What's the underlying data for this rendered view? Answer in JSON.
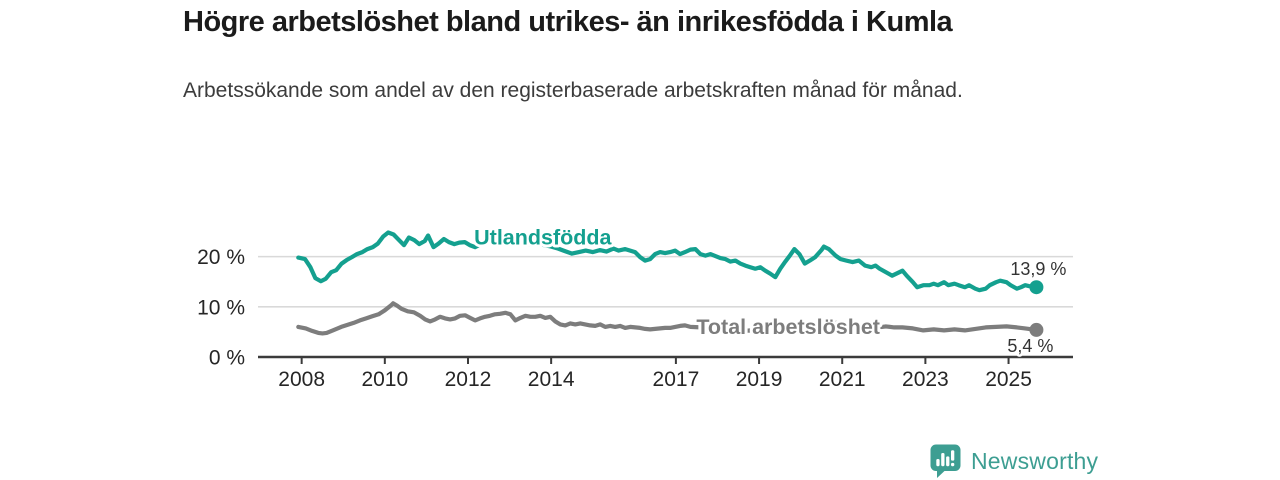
{
  "header": {},
  "chart_data": {
    "type": "line",
    "title": "Högre arbetslöshet bland utrikes- än inrikesfödda i Kumla",
    "subtitle": "Arbetssökande som andel av den registerbaserade arbetskraften månad för månad.",
    "unit": "%",
    "grid": "horizontal",
    "legend": "inline-labels",
    "xlim": [
      2006.95,
      2026.55
    ],
    "ylim": [
      0,
      26
    ],
    "x_ticks": [
      2008,
      2010,
      2012,
      2014,
      2017,
      2019,
      2021,
      2023,
      2025
    ],
    "y_ticks": [
      {
        "value": 0,
        "label": "0 %"
      },
      {
        "value": 10,
        "label": "10 %"
      },
      {
        "value": 20,
        "label": "20 %"
      }
    ],
    "series": [
      {
        "name": "Total arbetslöshet",
        "color": "#7d7d7d",
        "end_label": "5,4 %",
        "end_label_pos": "below",
        "end_dot": true,
        "label_anchor": {
          "year": 2019.7,
          "value": 6.1
        },
        "points": [
          [
            2007.92,
            6.0
          ],
          [
            2008.1,
            5.7
          ],
          [
            2008.25,
            5.2
          ],
          [
            2008.4,
            4.8
          ],
          [
            2008.5,
            4.7
          ],
          [
            2008.6,
            4.8
          ],
          [
            2008.75,
            5.3
          ],
          [
            2008.95,
            6.0
          ],
          [
            2009.1,
            6.4
          ],
          [
            2009.25,
            6.8
          ],
          [
            2009.4,
            7.3
          ],
          [
            2009.55,
            7.7
          ],
          [
            2009.7,
            8.1
          ],
          [
            2009.85,
            8.5
          ],
          [
            2010.0,
            9.3
          ],
          [
            2010.15,
            10.3
          ],
          [
            2010.2,
            10.7
          ],
          [
            2010.3,
            10.2
          ],
          [
            2010.4,
            9.6
          ],
          [
            2010.55,
            9.1
          ],
          [
            2010.7,
            8.9
          ],
          [
            2010.85,
            8.2
          ],
          [
            2010.97,
            7.5
          ],
          [
            2011.09,
            7.1
          ],
          [
            2011.21,
            7.5
          ],
          [
            2011.33,
            8.0
          ],
          [
            2011.45,
            7.7
          ],
          [
            2011.57,
            7.5
          ],
          [
            2011.69,
            7.7
          ],
          [
            2011.81,
            8.2
          ],
          [
            2011.93,
            8.3
          ],
          [
            2012.05,
            7.8
          ],
          [
            2012.17,
            7.3
          ],
          [
            2012.29,
            7.7
          ],
          [
            2012.41,
            8.0
          ],
          [
            2012.53,
            8.2
          ],
          [
            2012.65,
            8.5
          ],
          [
            2012.77,
            8.6
          ],
          [
            2012.9,
            8.8
          ],
          [
            2013.02,
            8.5
          ],
          [
            2013.14,
            7.3
          ],
          [
            2013.26,
            7.8
          ],
          [
            2013.38,
            8.2
          ],
          [
            2013.5,
            8.0
          ],
          [
            2013.62,
            8.0
          ],
          [
            2013.74,
            8.2
          ],
          [
            2013.86,
            7.8
          ],
          [
            2013.98,
            8.0
          ],
          [
            2014.1,
            7.1
          ],
          [
            2014.22,
            6.5
          ],
          [
            2014.34,
            6.3
          ],
          [
            2014.46,
            6.7
          ],
          [
            2014.58,
            6.5
          ],
          [
            2014.7,
            6.7
          ],
          [
            2014.82,
            6.5
          ],
          [
            2014.94,
            6.3
          ],
          [
            2015.06,
            6.2
          ],
          [
            2015.18,
            6.5
          ],
          [
            2015.3,
            6.0
          ],
          [
            2015.42,
            6.2
          ],
          [
            2015.54,
            6.0
          ],
          [
            2015.66,
            6.2
          ],
          [
            2015.78,
            5.8
          ],
          [
            2015.9,
            6.0
          ],
          [
            2016.02,
            5.9
          ],
          [
            2016.14,
            5.8
          ],
          [
            2016.26,
            5.6
          ],
          [
            2016.38,
            5.5
          ],
          [
            2016.5,
            5.6
          ],
          [
            2016.62,
            5.7
          ],
          [
            2016.74,
            5.8
          ],
          [
            2016.86,
            5.8
          ],
          [
            2016.98,
            6.0
          ],
          [
            2017.1,
            6.2
          ],
          [
            2017.22,
            6.3
          ],
          [
            2017.35,
            6.0
          ],
          [
            2017.6,
            5.9
          ],
          [
            2017.85,
            5.7
          ],
          [
            2018.1,
            5.5
          ],
          [
            2018.35,
            5.3
          ],
          [
            2018.6,
            5.2
          ],
          [
            2018.85,
            5.3
          ],
          [
            2019.1,
            5.4
          ],
          [
            2019.35,
            5.2
          ],
          [
            2019.6,
            5.5
          ],
          [
            2019.85,
            5.8
          ],
          [
            2020.1,
            6.2
          ],
          [
            2020.35,
            6.7
          ],
          [
            2020.6,
            7.0
          ],
          [
            2020.85,
            6.8
          ],
          [
            2021.1,
            6.6
          ],
          [
            2021.35,
            6.4
          ],
          [
            2021.6,
            6.1
          ],
          [
            2021.85,
            5.9
          ],
          [
            2022.05,
            6.1
          ],
          [
            2022.25,
            5.9
          ],
          [
            2022.45,
            5.9
          ],
          [
            2022.7,
            5.7
          ],
          [
            2022.95,
            5.3
          ],
          [
            2023.2,
            5.5
          ],
          [
            2023.45,
            5.3
          ],
          [
            2023.7,
            5.5
          ],
          [
            2023.95,
            5.3
          ],
          [
            2024.2,
            5.6
          ],
          [
            2024.45,
            5.9
          ],
          [
            2024.7,
            6.0
          ],
          [
            2024.95,
            6.1
          ],
          [
            2025.2,
            5.9
          ],
          [
            2025.4,
            5.7
          ],
          [
            2025.67,
            5.4
          ]
        ]
      },
      {
        "name": "Utlandsfödda",
        "color": "#14a08f",
        "end_label": "13,9 %",
        "end_label_pos": "above",
        "end_dot": true,
        "label_anchor": {
          "year": 2013.8,
          "value": 23.9
        },
        "points": [
          [
            2007.92,
            19.8
          ],
          [
            2008.08,
            19.5
          ],
          [
            2008.21,
            17.9
          ],
          [
            2008.33,
            15.7
          ],
          [
            2008.46,
            15.1
          ],
          [
            2008.58,
            15.6
          ],
          [
            2008.71,
            16.9
          ],
          [
            2008.83,
            17.3
          ],
          [
            2008.96,
            18.6
          ],
          [
            2009.08,
            19.3
          ],
          [
            2009.21,
            19.9
          ],
          [
            2009.33,
            20.5
          ],
          [
            2009.46,
            20.9
          ],
          [
            2009.58,
            21.5
          ],
          [
            2009.71,
            21.9
          ],
          [
            2009.83,
            22.6
          ],
          [
            2009.96,
            24.0
          ],
          [
            2010.08,
            24.8
          ],
          [
            2010.21,
            24.4
          ],
          [
            2010.33,
            23.4
          ],
          [
            2010.46,
            22.3
          ],
          [
            2010.58,
            23.8
          ],
          [
            2010.71,
            23.3
          ],
          [
            2010.83,
            22.5
          ],
          [
            2010.96,
            23.1
          ],
          [
            2011.04,
            24.2
          ],
          [
            2011.17,
            21.9
          ],
          [
            2011.29,
            22.6
          ],
          [
            2011.42,
            23.5
          ],
          [
            2011.54,
            22.9
          ],
          [
            2011.67,
            22.5
          ],
          [
            2011.79,
            22.8
          ],
          [
            2011.92,
            22.9
          ],
          [
            2012.04,
            22.3
          ],
          [
            2012.17,
            21.9
          ],
          [
            2012.33,
            22.6
          ],
          [
            2012.5,
            23.1
          ],
          [
            2012.67,
            22.7
          ],
          [
            2012.83,
            23.2
          ],
          [
            2013.0,
            22.8
          ],
          [
            2013.17,
            23.3
          ],
          [
            2013.33,
            22.8
          ],
          [
            2013.5,
            22.4
          ],
          [
            2013.67,
            22.8
          ],
          [
            2013.83,
            22.3
          ],
          [
            2014.0,
            22.0
          ],
          [
            2014.17,
            21.6
          ],
          [
            2014.33,
            21.1
          ],
          [
            2014.5,
            20.6
          ],
          [
            2014.67,
            20.9
          ],
          [
            2014.83,
            21.2
          ],
          [
            2015.0,
            20.9
          ],
          [
            2015.17,
            21.3
          ],
          [
            2015.33,
            21.0
          ],
          [
            2015.5,
            21.6
          ],
          [
            2015.62,
            21.2
          ],
          [
            2015.78,
            21.5
          ],
          [
            2015.9,
            21.2
          ],
          [
            2016.02,
            20.9
          ],
          [
            2016.14,
            19.9
          ],
          [
            2016.26,
            19.2
          ],
          [
            2016.38,
            19.5
          ],
          [
            2016.5,
            20.5
          ],
          [
            2016.62,
            20.9
          ],
          [
            2016.74,
            20.7
          ],
          [
            2016.86,
            20.9
          ],
          [
            2016.98,
            21.2
          ],
          [
            2017.1,
            20.5
          ],
          [
            2017.22,
            20.9
          ],
          [
            2017.35,
            21.4
          ],
          [
            2017.47,
            21.5
          ],
          [
            2017.59,
            20.5
          ],
          [
            2017.71,
            20.2
          ],
          [
            2017.83,
            20.5
          ],
          [
            2017.95,
            20.1
          ],
          [
            2018.07,
            19.7
          ],
          [
            2018.19,
            19.5
          ],
          [
            2018.31,
            19.0
          ],
          [
            2018.43,
            19.2
          ],
          [
            2018.55,
            18.6
          ],
          [
            2018.67,
            18.2
          ],
          [
            2018.79,
            17.9
          ],
          [
            2018.91,
            17.6
          ],
          [
            2019.03,
            17.9
          ],
          [
            2019.15,
            17.2
          ],
          [
            2019.27,
            16.6
          ],
          [
            2019.39,
            15.9
          ],
          [
            2019.51,
            17.6
          ],
          [
            2019.63,
            19.0
          ],
          [
            2019.75,
            20.3
          ],
          [
            2019.85,
            21.5
          ],
          [
            2019.97,
            20.5
          ],
          [
            2020.1,
            18.6
          ],
          [
            2020.22,
            19.2
          ],
          [
            2020.35,
            19.9
          ],
          [
            2020.5,
            21.3
          ],
          [
            2020.56,
            22.0
          ],
          [
            2020.68,
            21.5
          ],
          [
            2020.84,
            20.2
          ],
          [
            2020.96,
            19.5
          ],
          [
            2021.1,
            19.2
          ],
          [
            2021.25,
            18.9
          ],
          [
            2021.4,
            19.2
          ],
          [
            2021.55,
            18.2
          ],
          [
            2021.7,
            17.9
          ],
          [
            2021.8,
            18.2
          ],
          [
            2021.9,
            17.6
          ],
          [
            2022.05,
            16.9
          ],
          [
            2022.2,
            16.2
          ],
          [
            2022.3,
            16.6
          ],
          [
            2022.45,
            17.2
          ],
          [
            2022.55,
            16.2
          ],
          [
            2022.7,
            14.9
          ],
          [
            2022.8,
            13.9
          ],
          [
            2022.95,
            14.3
          ],
          [
            2023.1,
            14.3
          ],
          [
            2023.2,
            14.6
          ],
          [
            2023.3,
            14.3
          ],
          [
            2023.45,
            14.9
          ],
          [
            2023.55,
            14.3
          ],
          [
            2023.7,
            14.6
          ],
          [
            2023.8,
            14.3
          ],
          [
            2023.95,
            13.9
          ],
          [
            2024.05,
            14.3
          ],
          [
            2024.2,
            13.6
          ],
          [
            2024.3,
            13.3
          ],
          [
            2024.45,
            13.6
          ],
          [
            2024.55,
            14.3
          ],
          [
            2024.7,
            14.9
          ],
          [
            2024.8,
            15.2
          ],
          [
            2024.95,
            14.9
          ],
          [
            2025.05,
            14.3
          ],
          [
            2025.2,
            13.6
          ],
          [
            2025.3,
            13.9
          ],
          [
            2025.4,
            14.3
          ],
          [
            2025.5,
            14.1
          ],
          [
            2025.67,
            13.9
          ]
        ]
      }
    ]
  },
  "branding": {
    "logo_text": "Newsworthy",
    "logo_icon": "bar-chart-speech-bubble-icon",
    "brand_color": "#3d9e92"
  }
}
